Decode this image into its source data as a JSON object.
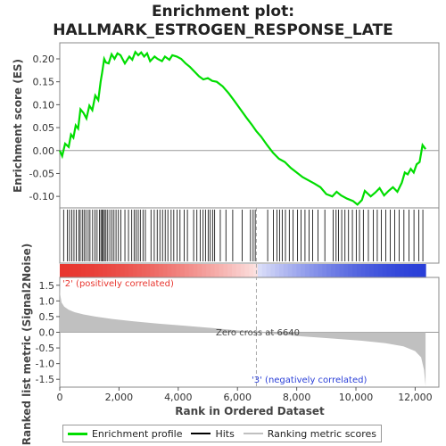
{
  "chart_data": {
    "type": "line",
    "title_line1": "Enrichment plot:",
    "title_line2": "HALLMARK_ESTROGEN_RESPONSE_LATE",
    "es_panel": {
      "ylabel": "Enrichment score (ES)",
      "ylim": [
        -0.125,
        0.235
      ],
      "yticks": [
        "0.20",
        "0.15",
        "0.10",
        "0.05",
        "0.00",
        "-0.05",
        "-0.10"
      ],
      "ytick_values": [
        0.2,
        0.15,
        0.1,
        0.05,
        0.0,
        -0.05,
        -0.1
      ],
      "color": "#00dd00",
      "points": [
        [
          0,
          0.0
        ],
        [
          80,
          -0.012
        ],
        [
          180,
          0.015
        ],
        [
          300,
          0.008
        ],
        [
          380,
          0.035
        ],
        [
          460,
          0.028
        ],
        [
          540,
          0.055
        ],
        [
          620,
          0.048
        ],
        [
          700,
          0.09
        ],
        [
          800,
          0.082
        ],
        [
          900,
          0.07
        ],
        [
          1000,
          0.098
        ],
        [
          1100,
          0.088
        ],
        [
          1200,
          0.12
        ],
        [
          1300,
          0.11
        ],
        [
          1380,
          0.15
        ],
        [
          1430,
          0.17
        ],
        [
          1500,
          0.2
        ],
        [
          1560,
          0.192
        ],
        [
          1650,
          0.19
        ],
        [
          1750,
          0.21
        ],
        [
          1850,
          0.2
        ],
        [
          1950,
          0.212
        ],
        [
          2050,
          0.208
        ],
        [
          2200,
          0.19
        ],
        [
          2350,
          0.205
        ],
        [
          2450,
          0.198
        ],
        [
          2550,
          0.215
        ],
        [
          2650,
          0.208
        ],
        [
          2750,
          0.214
        ],
        [
          2850,
          0.205
        ],
        [
          2950,
          0.212
        ],
        [
          3050,
          0.195
        ],
        [
          3200,
          0.205
        ],
        [
          3300,
          0.2
        ],
        [
          3450,
          0.195
        ],
        [
          3550,
          0.205
        ],
        [
          3700,
          0.198
        ],
        [
          3800,
          0.208
        ],
        [
          3950,
          0.205
        ],
        [
          4100,
          0.2
        ],
        [
          4250,
          0.19
        ],
        [
          4400,
          0.182
        ],
        [
          4550,
          0.172
        ],
        [
          4700,
          0.162
        ],
        [
          4850,
          0.155
        ],
        [
          5000,
          0.158
        ],
        [
          5150,
          0.152
        ],
        [
          5300,
          0.15
        ],
        [
          5500,
          0.14
        ],
        [
          5700,
          0.125
        ],
        [
          5900,
          0.108
        ],
        [
          6100,
          0.09
        ],
        [
          6300,
          0.072
        ],
        [
          6500,
          0.055
        ],
        [
          6640,
          0.042
        ],
        [
          6800,
          0.03
        ],
        [
          7000,
          0.012
        ],
        [
          7200,
          -0.005
        ],
        [
          7400,
          -0.018
        ],
        [
          7600,
          -0.025
        ],
        [
          7800,
          -0.038
        ],
        [
          8000,
          -0.048
        ],
        [
          8200,
          -0.058
        ],
        [
          8400,
          -0.065
        ],
        [
          8600,
          -0.072
        ],
        [
          8800,
          -0.08
        ],
        [
          9000,
          -0.095
        ],
        [
          9200,
          -0.1
        ],
        [
          9350,
          -0.09
        ],
        [
          9500,
          -0.098
        ],
        [
          9700,
          -0.105
        ],
        [
          9900,
          -0.11
        ],
        [
          10050,
          -0.118
        ],
        [
          10200,
          -0.108
        ],
        [
          10300,
          -0.088
        ],
        [
          10500,
          -0.1
        ],
        [
          10650,
          -0.092
        ],
        [
          10800,
          -0.082
        ],
        [
          10950,
          -0.098
        ],
        [
          11100,
          -0.088
        ],
        [
          11250,
          -0.08
        ],
        [
          11400,
          -0.09
        ],
        [
          11550,
          -0.07
        ],
        [
          11650,
          -0.048
        ],
        [
          11750,
          -0.052
        ],
        [
          11850,
          -0.04
        ],
        [
          11950,
          -0.048
        ],
        [
          12050,
          -0.03
        ],
        [
          12150,
          -0.025
        ],
        [
          12250,
          0.012
        ],
        [
          12350,
          0.003
        ]
      ]
    },
    "hits_panel": {
      "hit_ranks": [
        130,
        260,
        330,
        410,
        480,
        560,
        640,
        690,
        760,
        820,
        880,
        960,
        1020,
        1110,
        1190,
        1260,
        1340,
        1390,
        1430,
        1470,
        1510,
        1560,
        1620,
        1690,
        1760,
        1830,
        1900,
        1980,
        2060,
        2200,
        2320,
        2430,
        2510,
        2580,
        2650,
        2720,
        2810,
        2890,
        3080,
        3190,
        3290,
        3380,
        3470,
        3560,
        3650,
        3760,
        3850,
        3960,
        4060,
        4200,
        4310,
        4520,
        4630,
        4740,
        4840,
        4920,
        5010,
        5080,
        5160,
        5230,
        5420,
        5610,
        5840,
        6160,
        6440,
        6530,
        6600,
        7020,
        7210,
        7330,
        7420,
        7510,
        7620,
        7750,
        7880,
        8030,
        8150,
        8280,
        8420,
        8540,
        8720,
        8950,
        9230,
        9330,
        9410,
        9520,
        9630,
        9750,
        9880,
        10010,
        10120,
        10250,
        10420,
        10590,
        10720,
        10860,
        11010,
        11160,
        11310,
        11460,
        11620,
        11790,
        11960,
        12120,
        12260
      ]
    },
    "metric_panel": {
      "ylabel": "Ranked list metric (Signal2Noise)",
      "xlabel": "Rank in Ordered Dataset",
      "ylim": [
        -1.75,
        1.75
      ],
      "yticks": [
        "1.5",
        "1.0",
        "0.5",
        "0.0",
        "-0.5",
        "-1.0",
        "-1.5"
      ],
      "ytick_values": [
        1.5,
        1.0,
        0.5,
        0.0,
        -0.5,
        -1.0,
        -1.5
      ],
      "xticks": [
        "0",
        "2,000",
        "4,000",
        "6,000",
        "8,000",
        "10,000",
        "12,000"
      ],
      "xtick_values": [
        0,
        2000,
        4000,
        6000,
        8000,
        10000,
        12000
      ],
      "xlim": [
        0,
        12800
      ],
      "n_ranks": 12350,
      "zero_cross_rank": 6640,
      "zero_cross_label": "Zero cross at 6640",
      "pos_label": "'2' (positively correlated)",
      "neg_label": "'3' (negatively correlated)",
      "pos_color": "#e8362f",
      "neg_color": "#2a3fd8",
      "fill_color": "#c0c0c0",
      "curve": [
        [
          0,
          1.72
        ],
        [
          15,
          1.2
        ],
        [
          60,
          0.95
        ],
        [
          150,
          0.82
        ],
        [
          300,
          0.72
        ],
        [
          500,
          0.64
        ],
        [
          800,
          0.57
        ],
        [
          1200,
          0.5
        ],
        [
          1800,
          0.42
        ],
        [
          2500,
          0.35
        ],
        [
          3300,
          0.28
        ],
        [
          4200,
          0.21
        ],
        [
          5200,
          0.13
        ],
        [
          6000,
          0.06
        ],
        [
          6640,
          0.0
        ],
        [
          7300,
          -0.06
        ],
        [
          8200,
          -0.13
        ],
        [
          9200,
          -0.2
        ],
        [
          10200,
          -0.27
        ],
        [
          11000,
          -0.35
        ],
        [
          11600,
          -0.45
        ],
        [
          12000,
          -0.6
        ],
        [
          12200,
          -0.8
        ],
        [
          12300,
          -1.2
        ],
        [
          12350,
          -1.72
        ]
      ]
    }
  },
  "legend": {
    "items": [
      {
        "label": "Enrichment profile",
        "color": "#00dd00"
      },
      {
        "label": "Hits",
        "color": "#000000"
      },
      {
        "label": "Ranking metric scores",
        "color": "#c0c0c0"
      }
    ]
  }
}
